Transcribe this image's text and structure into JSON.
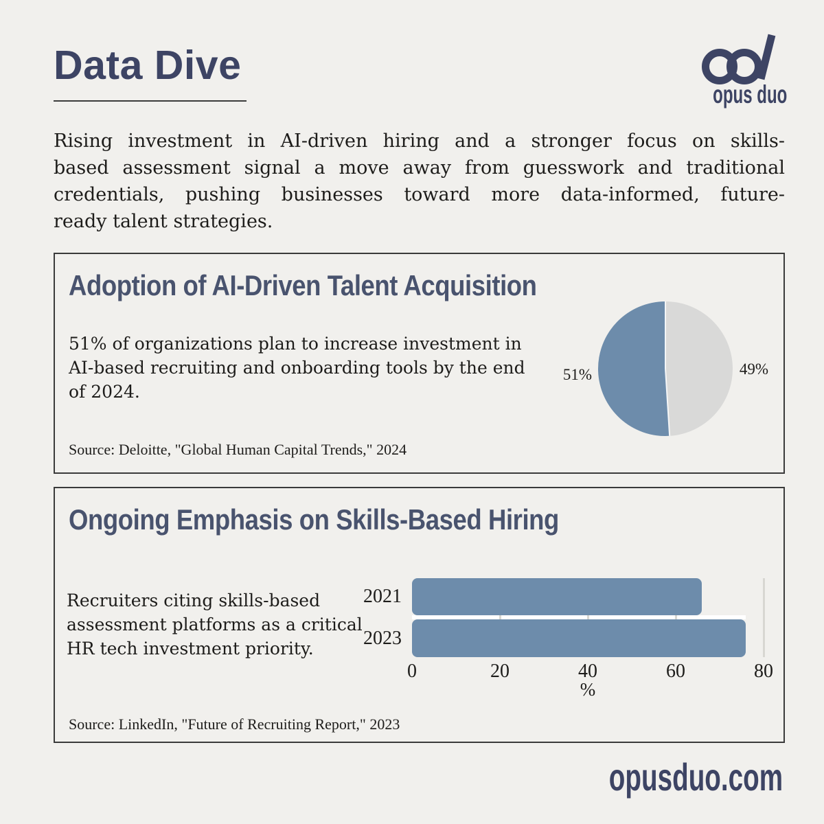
{
  "page": {
    "title": "Data Dive",
    "brand": {
      "name": "opus duo",
      "logo": "infinity-ad-mark"
    },
    "website": "opusduo.com",
    "intro_lines": [
      "Rising investment in AI-driven hiring and a stronger focus on skills-",
      "based assessment signal a move away from guesswork and traditional",
      "credentials, pushing businesses toward more data-informed, future-",
      "ready talent strategies."
    ],
    "colors": {
      "background": "#f1f0ed",
      "accent_slate": "#3d4464",
      "heading_slate": "#49536e",
      "chart_blue": "#6d8cab",
      "chart_gray": "#d9d9d8",
      "text": "#1d1c1a",
      "border": "#3a3a3a"
    }
  },
  "sections": [
    {
      "title": "Adoption of AI-Driven Talent Acquisition",
      "body_lines": [
        "51% of organizations plan to increase investment in",
        "AI-based recruiting and onboarding tools by the end",
        "of 2024."
      ],
      "source": "Source: Deloitte, \"Global Human Capital Trends,\" 2024"
    },
    {
      "title": "Ongoing Emphasis on Skills-Based Hiring",
      "body_lines": [
        "Recruiters citing skills-based",
        "assessment platforms as a critical",
        "HR tech investment priority."
      ],
      "source": "Source: LinkedIn, \"Future of Recruiting Report,\" 2023"
    }
  ],
  "chart_data": [
    {
      "type": "pie",
      "labels": [
        "51%",
        "49%"
      ],
      "values": [
        51,
        49
      ],
      "colors": [
        "#6d8cab",
        "#d9d9d8"
      ],
      "start_angle_deg": 90,
      "direction": "counterclockwise",
      "title": "Adoption of AI-Driven Talent Acquisition"
    },
    {
      "type": "bar",
      "orientation": "horizontal",
      "categories": [
        "2021",
        "2023"
      ],
      "values": [
        66,
        76
      ],
      "xlim": [
        0,
        80
      ],
      "xticks": [
        0,
        20,
        40,
        60,
        80
      ],
      "xlabel": "%",
      "bar_color": "#6d8cab",
      "grid": true,
      "title": "Ongoing Emphasis on Skills-Based Hiring"
    }
  ]
}
